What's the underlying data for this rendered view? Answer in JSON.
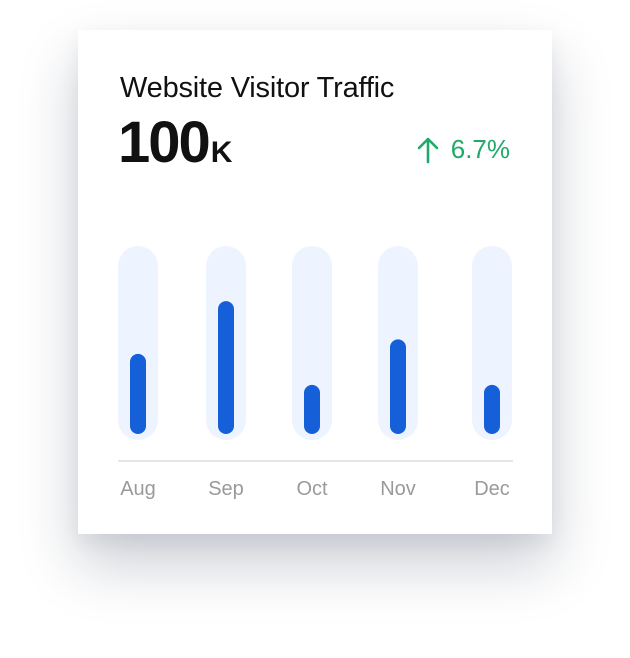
{
  "card": {
    "title": "Website Visitor Traffic",
    "metric_value": "100",
    "metric_unit": "K",
    "change_value": "6.7%",
    "change_direction": "up",
    "change_icon": "arrow-up-icon",
    "change_color": "#1faa6a"
  },
  "chart_data": {
    "type": "bar",
    "categories": [
      "Aug",
      "Sep",
      "Oct",
      "Nov",
      "Dec"
    ],
    "values": [
      44,
      73,
      27,
      52,
      27
    ],
    "ylim": [
      0,
      100
    ],
    "grid": false,
    "legend": "none",
    "bar_color": "#1560d9",
    "track_color": "#eef4ff"
  }
}
